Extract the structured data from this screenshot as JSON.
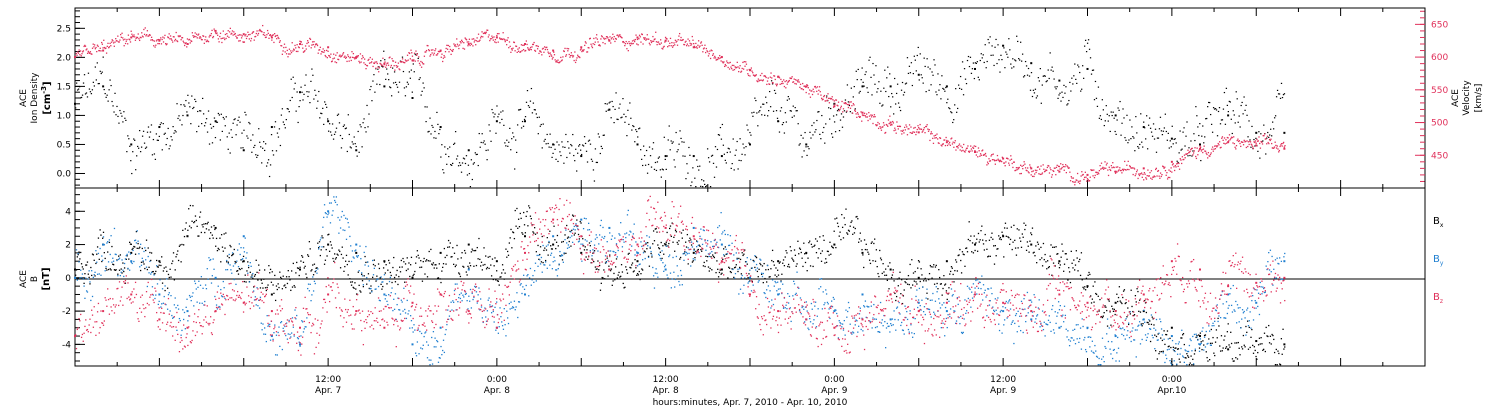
{
  "colors": {
    "bx": "#000000",
    "by": "#1f7fd0",
    "bz": "#e0305a",
    "density": "#000000",
    "velocity": "#e0305a"
  },
  "x_axis": {
    "label": "hours:minutes, Apr.  7, 2010 - Apr. 10, 2010",
    "range_hours": [
      0,
      96
    ],
    "ticks": [
      {
        "hour": 18,
        "time": "12:00",
        "day": "Apr. 7"
      },
      {
        "hour": 30,
        "time": "0:00",
        "day": "Apr. 8"
      },
      {
        "hour": 42,
        "time": "12:00",
        "day": "Apr. 8"
      },
      {
        "hour": 54,
        "time": "0:00",
        "day": "Apr. 9"
      },
      {
        "hour": 66,
        "time": "12:00",
        "day": "Apr. 9"
      },
      {
        "hour": 78,
        "time": "0:00",
        "day": "Apr.10"
      }
    ]
  },
  "chart_data": [
    {
      "type": "scatter",
      "panel": "plasma",
      "left_axis": {
        "label_lines": [
          "ACE",
          "Ion Density"
        ],
        "unit_base": "[cm",
        "unit_exp": "-3",
        "unit_close": "]",
        "ylim": [
          -0.25,
          2.85
        ],
        "ticks": [
          "0.0",
          "0.5",
          "1.0",
          "1.5",
          "2.0",
          "2.5"
        ]
      },
      "right_axis": {
        "label_lines": [
          "ACE",
          "Velocity"
        ],
        "unit": "[km/s]",
        "ylim": [
          400,
          675
        ],
        "ticks": [
          "450",
          "500",
          "550",
          "600",
          "650"
        ]
      },
      "series": [
        {
          "key": "density",
          "x_hours": [
            0,
            2,
            4,
            6,
            8,
            10,
            12,
            14,
            16,
            18,
            20,
            22,
            24,
            26,
            28,
            30,
            32,
            34,
            36,
            38,
            40,
            42,
            44,
            46,
            48,
            50,
            52,
            54,
            56,
            58,
            60,
            62,
            64,
            66,
            68,
            70,
            72,
            74,
            76,
            78,
            80,
            82,
            84,
            86
          ],
          "values": [
            1.2,
            1.5,
            0.5,
            0.8,
            1.0,
            0.9,
            0.4,
            0.8,
            1.4,
            0.9,
            0.4,
            1.5,
            1.3,
            0.8,
            0.4,
            0.9,
            0.9,
            0.5,
            0.3,
            1.1,
            0.5,
            0.3,
            0.3,
            0.3,
            0.5,
            0.9,
            0.5,
            1.2,
            1.5,
            1.5,
            1.7,
            1.5,
            1.8,
            2.2,
            1.9,
            1.6,
            1.8,
            1.0,
            0.8,
            0.6,
            0.5,
            1.0,
            0.7,
            0.7
          ]
        },
        {
          "key": "velocity",
          "x_hours": [
            0,
            2,
            4,
            6,
            8,
            10,
            12,
            14,
            16,
            18,
            20,
            22,
            24,
            26,
            28,
            30,
            32,
            34,
            36,
            38,
            40,
            42,
            44,
            46,
            48,
            50,
            52,
            54,
            56,
            58,
            60,
            62,
            64,
            66,
            68,
            70,
            72,
            74,
            76,
            78,
            80,
            82,
            84,
            86
          ],
          "values": [
            600,
            610,
            630,
            625,
            620,
            640,
            635,
            630,
            620,
            615,
            600,
            590,
            595,
            610,
            620,
            630,
            620,
            610,
            615,
            625,
            630,
            625,
            615,
            600,
            580,
            570,
            555,
            525,
            515,
            500,
            485,
            470,
            455,
            445,
            430,
            425,
            420,
            425,
            430,
            440,
            460,
            470,
            465,
            460
          ]
        }
      ]
    },
    {
      "type": "scatter",
      "panel": "magnetic",
      "left_axis": {
        "label_lines": [
          "ACE",
          "B"
        ],
        "unit": "[nT]",
        "ylim": [
          -5.3,
          5.4
        ],
        "ticks": [
          "-4",
          "-2",
          "0",
          "2",
          "4"
        ]
      },
      "legend": [
        {
          "key": "bx",
          "base": "B",
          "sub": "x"
        },
        {
          "key": "by",
          "base": "B",
          "sub": "y"
        },
        {
          "key": "bz",
          "base": "B",
          "sub": "z"
        }
      ],
      "series": [
        {
          "key": "bx",
          "x_hours": [
            0,
            2,
            4,
            6,
            8,
            10,
            12,
            14,
            16,
            18,
            20,
            22,
            24,
            26,
            28,
            30,
            32,
            34,
            36,
            38,
            40,
            42,
            44,
            46,
            48,
            50,
            52,
            54,
            56,
            58,
            60,
            62,
            64,
            66,
            68,
            70,
            72,
            74,
            76,
            78,
            80,
            82,
            84,
            86
          ],
          "values": [
            0.5,
            2.0,
            1.5,
            1.0,
            2.5,
            3.0,
            1.0,
            -1.0,
            0.5,
            2.0,
            1.5,
            1.0,
            0.0,
            1.5,
            2.0,
            1.0,
            2.5,
            2.0,
            1.5,
            0.5,
            1.0,
            2.0,
            1.5,
            0.5,
            0.0,
            1.0,
            1.5,
            2.0,
            1.5,
            0.5,
            0.0,
            1.0,
            2.0,
            2.5,
            2.0,
            1.0,
            -0.5,
            -1.5,
            -2.0,
            -3.0,
            -3.5,
            -4.3,
            -3.8,
            -4.0
          ]
        },
        {
          "key": "by",
          "x_hours": [
            0,
            2,
            4,
            6,
            8,
            10,
            12,
            14,
            16,
            18,
            20,
            22,
            24,
            26,
            28,
            30,
            32,
            34,
            36,
            38,
            40,
            42,
            44,
            46,
            48,
            50,
            52,
            54,
            56,
            58,
            60,
            62,
            64,
            66,
            68,
            70,
            72,
            74,
            76,
            78,
            80,
            82,
            84,
            86
          ],
          "values": [
            0.0,
            2.0,
            1.0,
            -1.0,
            -2.0,
            0.0,
            2.5,
            -3.5,
            -4.0,
            4.0,
            2.0,
            -1.0,
            -4.0,
            -3.0,
            0.5,
            -3.0,
            -1.0,
            2.5,
            3.5,
            3.0,
            1.5,
            0.5,
            3.0,
            2.0,
            0.0,
            -1.0,
            -2.5,
            -2.0,
            -1.0,
            -2.5,
            -1.5,
            -2.0,
            -1.0,
            -2.0,
            -2.5,
            -3.0,
            -3.0,
            -3.5,
            -2.5,
            -3.5,
            -4.0,
            -1.0,
            -1.5,
            1.0
          ]
        },
        {
          "key": "bz",
          "x_hours": [
            0,
            2,
            4,
            6,
            8,
            10,
            12,
            14,
            16,
            18,
            20,
            22,
            24,
            26,
            28,
            30,
            32,
            34,
            36,
            38,
            40,
            42,
            44,
            46,
            48,
            50,
            52,
            54,
            56,
            58,
            60,
            62,
            64,
            66,
            68,
            70,
            72,
            74,
            76,
            78,
            80,
            82,
            84,
            86
          ],
          "values": [
            -3.5,
            -2.0,
            -1.0,
            -2.5,
            -3.0,
            -2.0,
            -1.5,
            -2.0,
            -3.0,
            -1.0,
            -2.0,
            -3.0,
            -1.5,
            -1.0,
            -2.0,
            -3.0,
            1.5,
            3.5,
            2.5,
            0.5,
            2.0,
            3.0,
            2.5,
            1.0,
            -1.0,
            -2.0,
            -2.5,
            -3.0,
            -2.5,
            -1.0,
            -2.0,
            -1.5,
            -1.0,
            -1.5,
            -2.0,
            -1.0,
            -1.5,
            -2.0,
            -1.0,
            1.0,
            0.5,
            -0.5,
            -0.3,
            0.0
          ]
        }
      ]
    }
  ]
}
